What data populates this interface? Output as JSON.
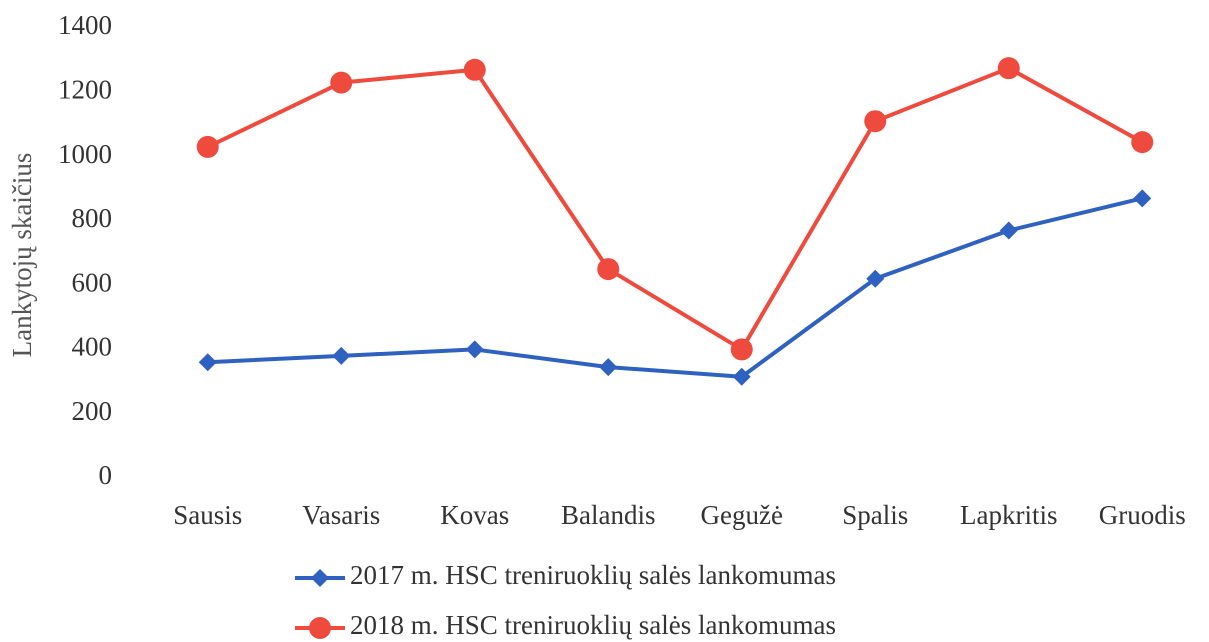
{
  "chart_data": {
    "type": "line",
    "ylabel": "Lankytojų skaičius",
    "categories": [
      "Sausis",
      "Vasaris",
      "Kovas",
      "Balandis",
      "Gegužė",
      "Spalis",
      "Lapkritis",
      "Gruodis"
    ],
    "series": [
      {
        "name": "2017 m. HSC treniruoklių salės lankomumas",
        "color": "#2f62c0",
        "marker": "diamond",
        "values": [
          360,
          380,
          400,
          345,
          315,
          620,
          770,
          870
        ]
      },
      {
        "name": "2018 m. HSC treniruoklių salės lankomumas",
        "color": "#ee4a3e",
        "marker": "circle",
        "values": [
          1030,
          1230,
          1270,
          650,
          400,
          1110,
          1275,
          1045
        ]
      }
    ],
    "ylim": [
      0,
      1400
    ],
    "yticks": [
      0,
      200,
      400,
      600,
      800,
      1000,
      1200,
      1400
    ],
    "grid": false
  }
}
